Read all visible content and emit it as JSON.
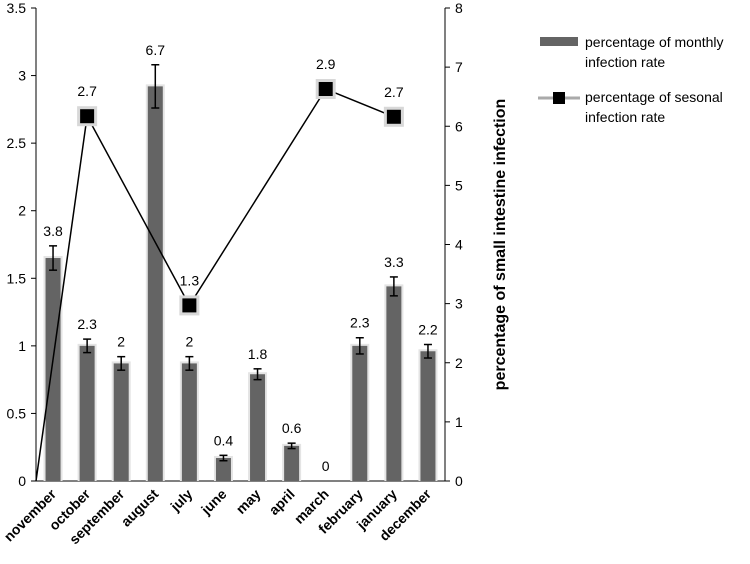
{
  "chart_data": {
    "type": "bar+line",
    "categories": [
      "november",
      "october",
      "september",
      "august",
      "july",
      "june",
      "may",
      "april",
      "march",
      "february",
      "january",
      "december"
    ],
    "series": [
      {
        "name": "percentage of monthly infection rate",
        "type": "bar",
        "axis": "left",
        "values": [
          1.65,
          1.0,
          0.87,
          2.92,
          0.87,
          0.17,
          0.79,
          0.26,
          0,
          1.0,
          1.44,
          0.96
        ],
        "errors": [
          0.09,
          0.05,
          0.05,
          0.16,
          0.05,
          0.02,
          0.04,
          0.02,
          0,
          0.06,
          0.07,
          0.05
        ],
        "labels": [
          "3.8",
          "2.3",
          "2",
          "6.7",
          "2",
          "0.4",
          "1.8",
          "0.6",
          "0",
          "2.3",
          "3.3",
          "2.2"
        ],
        "color": "#646464"
      },
      {
        "name": "percentage of sesonal infection rate",
        "type": "line",
        "axis": "right",
        "points": [
          {
            "category": "november",
            "value": 0,
            "label": ""
          },
          {
            "category": "october",
            "value": 6.17,
            "label": "2.7"
          },
          {
            "category": "july",
            "value": 2.97,
            "label": "1.3"
          },
          {
            "category": "march",
            "value": 6.63,
            "label": "2.9"
          },
          {
            "category": "january",
            "value": 6.16,
            "label": "2.7"
          }
        ],
        "color": "#000000"
      }
    ],
    "y_left": {
      "ylim": [
        0,
        3.5
      ],
      "ticks": [
        "0",
        "0.5",
        "1",
        "1.5",
        "2",
        "2.5",
        "3",
        "3.5"
      ]
    },
    "y_right": {
      "ylim": [
        0,
        8
      ],
      "ticks": [
        "0",
        "1",
        "2",
        "3",
        "4",
        "5",
        "6",
        "7",
        "8"
      ],
      "label": "percentage of small intestine infection"
    },
    "legend": {
      "position": "top-right",
      "items": [
        {
          "lines": [
            "percentage of monthly",
            "infection rate"
          ]
        },
        {
          "lines": [
            "percentage of sesonal",
            "infection rate"
          ]
        }
      ]
    },
    "grid": false
  }
}
